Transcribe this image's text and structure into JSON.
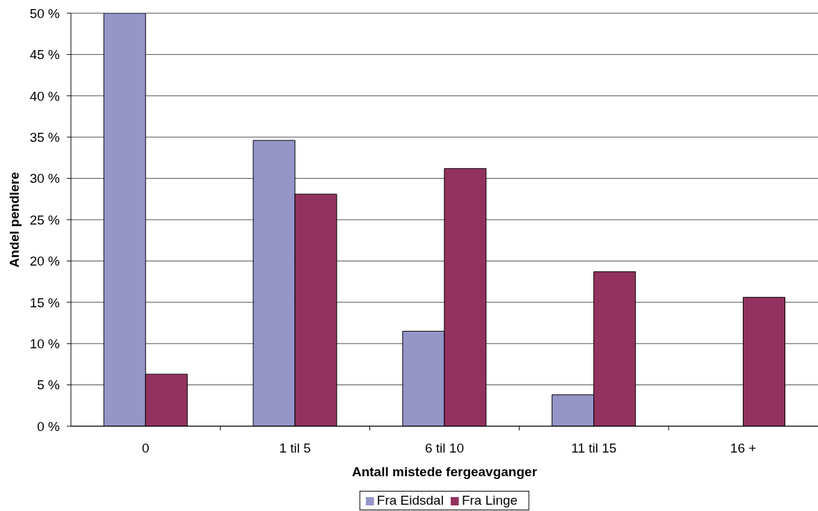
{
  "chart_data": {
    "type": "bar",
    "xlabel": "Antall mistede fergeavganger",
    "ylabel": "Andel pendlere",
    "categories": [
      "0",
      "1 til 5",
      "6 til 10",
      "11 til 15",
      "16 +"
    ],
    "series": [
      {
        "name": "Fra Eidsdal",
        "color": "#9595c8",
        "values": [
          50,
          34.6,
          11.5,
          3.8,
          0
        ]
      },
      {
        "name": "Fra Linge",
        "color": "#93325f",
        "values": [
          6.3,
          28.1,
          31.2,
          18.7,
          15.6
        ]
      }
    ],
    "ylim": [
      0,
      50
    ],
    "yticks": [
      {
        "value": 0,
        "label": "0 %"
      },
      {
        "value": 5,
        "label": "5 %"
      },
      {
        "value": 10,
        "label": "10 %"
      },
      {
        "value": 15,
        "label": "15 %"
      },
      {
        "value": 20,
        "label": "20 %"
      },
      {
        "value": 25,
        "label": "25 %"
      },
      {
        "value": 30,
        "label": "30 %"
      },
      {
        "value": 35,
        "label": "35 %"
      },
      {
        "value": 40,
        "label": "40 %"
      },
      {
        "value": 45,
        "label": "45 %"
      },
      {
        "value": 50,
        "label": "50 %"
      }
    ],
    "grid": "y",
    "legend": "bottom"
  }
}
